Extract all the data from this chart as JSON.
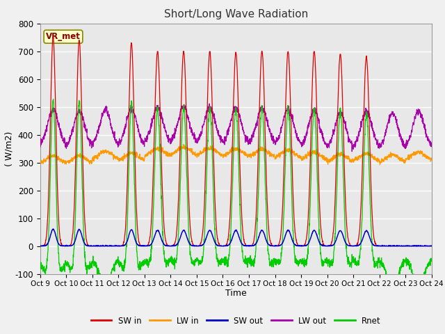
{
  "title": "Short/Long Wave Radiation",
  "xlabel": "Time",
  "ylabel": "( W/m2)",
  "ylim": [
    -100,
    800
  ],
  "xlim": [
    0,
    360
  ],
  "fig_facecolor": "#f0f0f0",
  "ax_facecolor": "#e8e8e8",
  "station_label": "VR_met",
  "legend_entries": [
    "SW in",
    "LW in",
    "SW out",
    "LW out",
    "Rnet"
  ],
  "line_colors": {
    "SW_in": "#dd0000",
    "LW_in": "#ff9900",
    "SW_out": "#0000cc",
    "LW_out": "#aa00aa",
    "Rnet": "#00cc00"
  },
  "xtick_labels": [
    "Oct 9",
    "Oct 10",
    "Oct 11",
    "Oct 12",
    "Oct 13",
    "Oct 14",
    "Oct 15",
    "Oct 16",
    "Oct 17",
    "Oct 18",
    "Oct 19",
    "Oct 20",
    "Oct 21",
    "Oct 22",
    "Oct 23",
    "Oct 24"
  ],
  "xtick_positions": [
    0,
    24,
    48,
    72,
    96,
    120,
    144,
    168,
    192,
    216,
    240,
    264,
    288,
    312,
    336,
    360
  ],
  "ytick_values": [
    -100,
    0,
    100,
    200,
    300,
    400,
    500,
    600,
    700,
    800
  ],
  "n_days": 15
}
